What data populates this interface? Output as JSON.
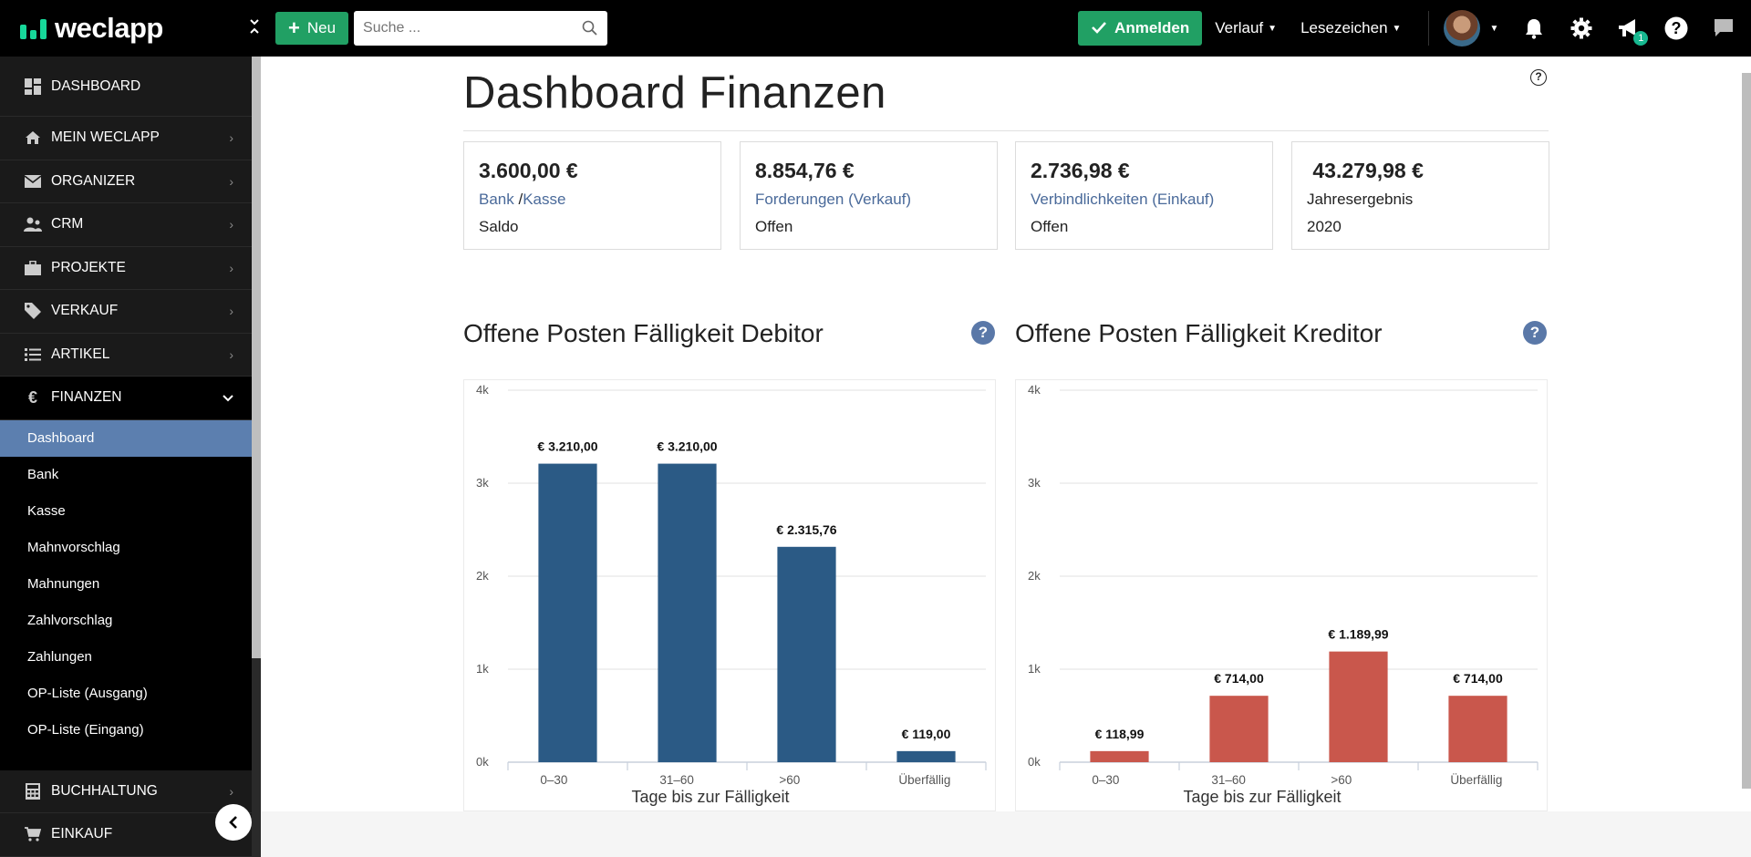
{
  "topbar": {
    "logo_text": "weclapp",
    "new_label": "Neu",
    "search_placeholder": "Suche ...",
    "anmelden_label": "Anmelden",
    "verlauf_label": "Verlauf",
    "lesezeichen_label": "Lesezeichen",
    "notification_badge": "1",
    "accent_color": "#21a064"
  },
  "sidebar": {
    "items": [
      {
        "label": "DASHBOARD",
        "icon": "dashboard-icon"
      },
      {
        "label": "MEIN WECLAPP",
        "icon": "home-icon"
      },
      {
        "label": "ORGANIZER",
        "icon": "mail-icon"
      },
      {
        "label": "CRM",
        "icon": "users-icon"
      },
      {
        "label": "PROJEKTE",
        "icon": "briefcase-icon"
      },
      {
        "label": "VERKAUF",
        "icon": "tag-icon"
      },
      {
        "label": "ARTIKEL",
        "icon": "list-icon"
      },
      {
        "label": "FINANZEN",
        "icon": "euro-icon"
      }
    ],
    "sub_items": [
      {
        "label": "Dashboard",
        "active": true
      },
      {
        "label": "Bank"
      },
      {
        "label": "Kasse"
      },
      {
        "label": "Mahnvorschlag"
      },
      {
        "label": "Mahnungen"
      },
      {
        "label": "Zahlvorschlag"
      },
      {
        "label": "Zahlungen"
      },
      {
        "label": "OP-Liste (Ausgang)"
      },
      {
        "label": "OP-Liste (Eingang)"
      }
    ],
    "bottom_items": [
      {
        "label": "BUCHHALTUNG",
        "icon": "calculator-icon"
      },
      {
        "label": "EINKAUF",
        "icon": "cart-icon"
      }
    ],
    "active_color": "#5c7faf"
  },
  "main": {
    "title": "Dashboard Finanzen",
    "kpis": [
      {
        "value": "3.600,00 €",
        "link1": "Bank",
        "sep": " /",
        "link2": "Kasse",
        "sub": "Saldo"
      },
      {
        "value": "8.854,76 €",
        "link1": "Forderungen (Verkauf)",
        "sub": "Offen"
      },
      {
        "value": "2.736,98 €",
        "link1": "Verbindlichkeiten (Einkauf)",
        "sub": "Offen"
      },
      {
        "value": " 43.279,98 €",
        "plain": "Jahresergebnis",
        "sub": "2020"
      }
    ],
    "debitor_title": "Offene Posten Fälligkeit Debitor",
    "kreditor_title": "Offene Posten Fälligkeit Kreditor"
  },
  "chart_data": [
    {
      "type": "bar",
      "categories": [
        "0–30",
        "31–60",
        ">60",
        "Überfällig"
      ],
      "values": [
        3210.0,
        3210.0,
        2315.76,
        119.0
      ],
      "value_labels": [
        "€ 3.210,00",
        "€ 3.210,00",
        "€ 2.315,76",
        "€ 119,00"
      ],
      "xlabel": "Tage bis zur Fälligkeit",
      "ylabel": "",
      "yticks": [
        "0k",
        "1k",
        "2k",
        "3k",
        "4k"
      ],
      "ylim": [
        0,
        4000
      ],
      "grid": true,
      "color": "#2b5a85"
    },
    {
      "type": "bar",
      "categories": [
        "0–30",
        "31–60",
        ">60",
        "Überfällig"
      ],
      "values": [
        118.99,
        714.0,
        1189.99,
        714.0
      ],
      "value_labels": [
        "€ 118,99",
        "€ 714,00",
        "€ 1.189,99",
        "€ 714,00"
      ],
      "xlabel": "Tage bis zur Fälligkeit",
      "ylabel": "",
      "yticks": [
        "0k",
        "1k",
        "2k",
        "3k",
        "4k"
      ],
      "ylim": [
        0,
        4000
      ],
      "grid": true,
      "color": "#c9574c"
    }
  ]
}
